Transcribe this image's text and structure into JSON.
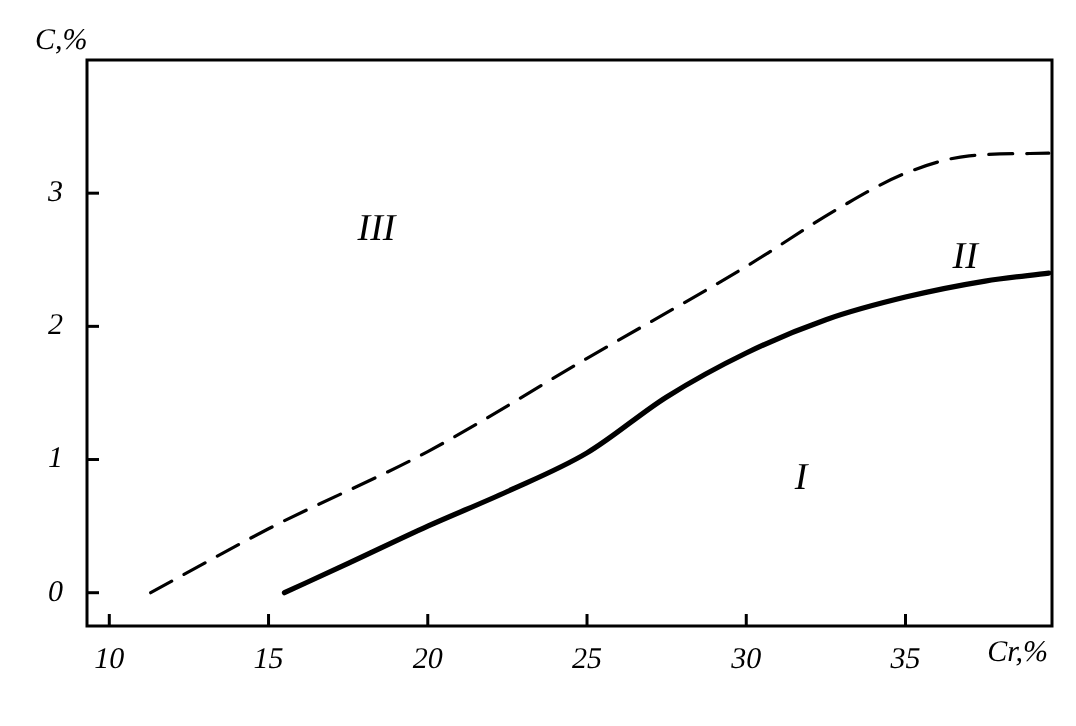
{
  "chart_data": {
    "type": "line",
    "xlabel": "Cr,%",
    "ylabel": "C,%",
    "xlim": [
      9.3,
      39.6
    ],
    "ylim": [
      -0.25,
      4.0
    ],
    "xticks": [
      10,
      15,
      20,
      25,
      30,
      35
    ],
    "yticks": [
      0,
      1,
      2,
      3
    ],
    "grid": false,
    "legend": false,
    "marker": "none",
    "series": [
      {
        "color": "#000000",
        "line_style": "solid",
        "x": [
          15.5,
          17.5,
          20,
          22.5,
          25,
          27.5,
          30,
          32.5,
          35,
          37.5,
          39.5
        ],
        "values": [
          0,
          0.22,
          0.5,
          0.76,
          1.05,
          1.47,
          1.8,
          2.05,
          2.22,
          2.34,
          2.4
        ]
      },
      {
        "color": "#000000",
        "line_style": "dashed",
        "x": [
          11.3,
          15,
          20,
          25,
          30,
          33,
          35,
          37,
          39.5
        ],
        "values": [
          0,
          0.48,
          1.06,
          1.76,
          2.45,
          2.9,
          3.15,
          3.28,
          3.3
        ]
      }
    ],
    "annotations": [
      "I",
      "II",
      "III"
    ]
  }
}
